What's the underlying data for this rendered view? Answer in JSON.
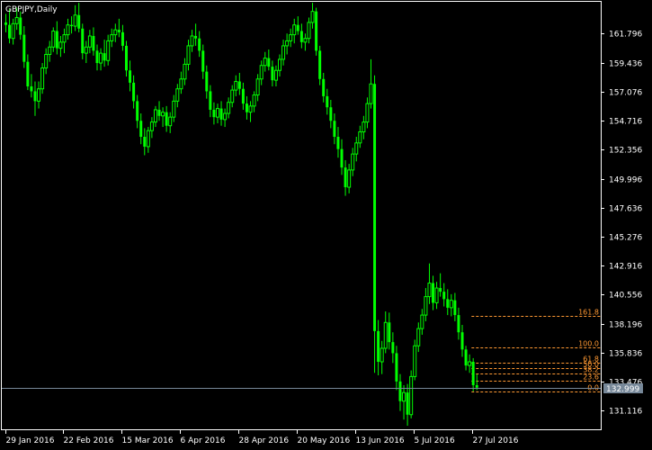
{
  "chart_data": {
    "type": "candlestick",
    "title": "GBPJPY,Daily",
    "colors": {
      "background": "#000000",
      "frame": "#ffffff",
      "candle": "#00ff00",
      "fibonacci": "#ff9933",
      "bid_line": "#778899",
      "bid_label_bg": "#778899",
      "bid_label_text": "#ffffff"
    },
    "ylim": [
      129.61,
      164.38
    ],
    "y_ticks": [
      {
        "label": "161.796",
        "value": 161.796
      },
      {
        "label": "159.436",
        "value": 159.436
      },
      {
        "label": "157.076",
        "value": 157.076
      },
      {
        "label": "154.716",
        "value": 154.716
      },
      {
        "label": "152.356",
        "value": 152.356
      },
      {
        "label": "149.996",
        "value": 149.996
      },
      {
        "label": "147.636",
        "value": 147.636
      },
      {
        "label": "145.276",
        "value": 145.276
      },
      {
        "label": "142.916",
        "value": 142.916
      },
      {
        "label": "140.556",
        "value": 140.556
      },
      {
        "label": "138.196",
        "value": 138.196
      },
      {
        "label": "135.836",
        "value": 135.836
      },
      {
        "label": "133.476",
        "value": 133.476
      },
      {
        "label": "131.116",
        "value": 131.116
      }
    ],
    "x_ticks": [
      {
        "label": "29 Jan 2016",
        "bar": 0
      },
      {
        "label": "22 Feb 2016",
        "bar": 16
      },
      {
        "label": "15 Mar 2016",
        "bar": 32
      },
      {
        "label": "6 Apr 2016",
        "bar": 48
      },
      {
        "label": "28 Apr 2016",
        "bar": 64
      },
      {
        "label": "20 May 2016",
        "bar": 80
      },
      {
        "label": "13 Jun 2016",
        "bar": 96
      },
      {
        "label": "5 Jul 2016",
        "bar": 112
      },
      {
        "label": "27 Jul 2016",
        "bar": 128
      }
    ],
    "bid": {
      "label": "132.999",
      "value": 132.999
    },
    "fibonacci": {
      "start_bar": 130,
      "levels": [
        {
          "label": "161.8",
          "value": 138.85
        },
        {
          "label": "100.0",
          "value": 136.25
        },
        {
          "label": "61.8",
          "value": 135.05
        },
        {
          "label": "50.0",
          "value": 134.58
        },
        {
          "label": "38.2",
          "value": 134.12
        },
        {
          "label": "23.6",
          "value": 133.57
        },
        {
          "label": "0.0",
          "value": 132.72
        }
      ]
    },
    "ohlc": [
      [
        162.7,
        163.4,
        161.9,
        162.5
      ],
      [
        162.5,
        163.8,
        161.0,
        161.4
      ],
      [
        161.4,
        163.0,
        160.9,
        162.6
      ],
      [
        162.6,
        163.9,
        162.1,
        163.1
      ],
      [
        163.1,
        163.6,
        161.3,
        161.7
      ],
      [
        161.7,
        162.4,
        159.0,
        159.5
      ],
      [
        159.5,
        160.1,
        157.2,
        157.5
      ],
      [
        157.5,
        158.5,
        156.6,
        157.1
      ],
      [
        157.1,
        157.9,
        155.1,
        156.3
      ],
      [
        156.3,
        157.9,
        155.7,
        157.3
      ],
      [
        157.3,
        159.4,
        156.9,
        159.0
      ],
      [
        159.0,
        160.6,
        158.5,
        160.1
      ],
      [
        160.1,
        161.2,
        159.5,
        160.7
      ],
      [
        160.7,
        162.3,
        160.3,
        162.0
      ],
      [
        162.0,
        162.8,
        160.1,
        160.6
      ],
      [
        160.6,
        161.6,
        159.9,
        161.1
      ],
      [
        161.1,
        162.2,
        160.2,
        161.7
      ],
      [
        161.7,
        163.0,
        161.3,
        162.5
      ],
      [
        162.5,
        163.2,
        161.8,
        162.4
      ],
      [
        162.4,
        164.1,
        162.0,
        163.3
      ],
      [
        163.3,
        164.3,
        161.9,
        162.2
      ],
      [
        162.2,
        162.6,
        159.7,
        160.2
      ],
      [
        160.2,
        161.2,
        159.4,
        160.7
      ],
      [
        160.7,
        162.1,
        160.2,
        161.6
      ],
      [
        161.6,
        162.3,
        160.0,
        160.4
      ],
      [
        160.4,
        160.9,
        158.8,
        159.4
      ],
      [
        159.4,
        160.6,
        158.8,
        160.2
      ],
      [
        160.2,
        161.3,
        159.1,
        159.6
      ],
      [
        159.6,
        161.7,
        159.2,
        161.2
      ],
      [
        161.2,
        162.2,
        160.7,
        161.7
      ],
      [
        161.7,
        162.6,
        161.1,
        162.1
      ],
      [
        162.1,
        163.0,
        161.5,
        161.9
      ],
      [
        161.9,
        162.5,
        160.4,
        160.8
      ],
      [
        160.8,
        161.2,
        158.3,
        158.8
      ],
      [
        158.8,
        159.6,
        157.1,
        157.8
      ],
      [
        157.8,
        158.4,
        155.7,
        156.3
      ],
      [
        156.3,
        156.8,
        154.1,
        154.7
      ],
      [
        154.7,
        155.3,
        152.8,
        153.4
      ],
      [
        153.4,
        154.1,
        151.9,
        152.6
      ],
      [
        152.6,
        154.2,
        152.1,
        153.9
      ],
      [
        153.9,
        155.0,
        153.3,
        154.6
      ],
      [
        154.6,
        155.9,
        154.2,
        155.6
      ],
      [
        155.6,
        156.3,
        154.7,
        155.1
      ],
      [
        155.1,
        155.8,
        154.2,
        155.4
      ],
      [
        155.4,
        155.9,
        153.8,
        154.3
      ],
      [
        154.3,
        155.4,
        153.7,
        155.0
      ],
      [
        155.0,
        156.8,
        154.6,
        156.3
      ],
      [
        156.3,
        157.7,
        155.8,
        157.3
      ],
      [
        157.3,
        158.7,
        156.9,
        158.1
      ],
      [
        158.1,
        159.8,
        157.6,
        159.3
      ],
      [
        159.3,
        161.3,
        158.8,
        160.8
      ],
      [
        160.8,
        162.1,
        160.3,
        161.6
      ],
      [
        161.6,
        162.6,
        160.8,
        161.4
      ],
      [
        161.4,
        162.0,
        159.9,
        160.4
      ],
      [
        160.4,
        160.9,
        158.1,
        158.7
      ],
      [
        158.7,
        159.2,
        156.5,
        157.1
      ],
      [
        157.1,
        157.6,
        155.0,
        155.6
      ],
      [
        155.6,
        156.2,
        154.4,
        155.0
      ],
      [
        155.0,
        156.1,
        154.5,
        155.7
      ],
      [
        155.7,
        156.3,
        154.3,
        154.8
      ],
      [
        154.8,
        155.7,
        154.2,
        155.3
      ],
      [
        155.3,
        156.6,
        154.9,
        156.2
      ],
      [
        156.2,
        157.6,
        155.8,
        157.2
      ],
      [
        157.2,
        158.4,
        156.7,
        157.9
      ],
      [
        157.9,
        158.6,
        156.8,
        157.3
      ],
      [
        157.3,
        157.8,
        155.6,
        156.1
      ],
      [
        156.1,
        156.7,
        154.8,
        155.4
      ],
      [
        155.4,
        156.3,
        154.6,
        155.9
      ],
      [
        155.9,
        157.1,
        155.4,
        156.8
      ],
      [
        156.8,
        158.5,
        156.3,
        158.1
      ],
      [
        158.1,
        159.6,
        157.6,
        159.2
      ],
      [
        159.2,
        160.3,
        158.7,
        159.8
      ],
      [
        159.8,
        160.5,
        158.8,
        159.1
      ],
      [
        159.1,
        159.6,
        157.5,
        158.0
      ],
      [
        158.0,
        159.2,
        157.5,
        158.8
      ],
      [
        158.8,
        160.1,
        158.3,
        159.7
      ],
      [
        159.7,
        161.3,
        159.2,
        160.8
      ],
      [
        160.8,
        161.8,
        160.1,
        161.2
      ],
      [
        161.2,
        162.2,
        160.7,
        161.7
      ],
      [
        161.7,
        163.0,
        161.0,
        162.5
      ],
      [
        162.5,
        163.2,
        161.7,
        162.0
      ],
      [
        162.0,
        162.6,
        160.6,
        161.1
      ],
      [
        161.1,
        161.8,
        160.4,
        161.4
      ],
      [
        161.4,
        163.1,
        161.0,
        162.7
      ],
      [
        162.7,
        164.3,
        162.2,
        163.6
      ],
      [
        163.6,
        163.9,
        160.0,
        160.4
      ],
      [
        160.4,
        160.8,
        157.6,
        158.1
      ],
      [
        158.1,
        158.6,
        156.2,
        156.7
      ],
      [
        156.7,
        157.3,
        155.2,
        155.8
      ],
      [
        155.8,
        156.4,
        154.1,
        154.7
      ],
      [
        154.7,
        155.3,
        152.8,
        153.4
      ],
      [
        153.4,
        154.2,
        151.7,
        152.4
      ],
      [
        152.4,
        153.2,
        150.3,
        150.9
      ],
      [
        150.9,
        151.5,
        148.6,
        149.3
      ],
      [
        149.3,
        151.2,
        148.8,
        150.7
      ],
      [
        150.7,
        152.5,
        150.2,
        152.0
      ],
      [
        152.0,
        153.4,
        151.4,
        152.9
      ],
      [
        152.9,
        154.3,
        152.5,
        153.8
      ],
      [
        153.8,
        155.1,
        153.2,
        154.6
      ],
      [
        154.6,
        156.6,
        154.1,
        156.1
      ],
      [
        156.1,
        159.7,
        155.7,
        157.7
      ],
      [
        157.7,
        158.4,
        134.2,
        137.6
      ],
      [
        137.6,
        138.5,
        134.0,
        135.1
      ],
      [
        135.1,
        136.8,
        134.1,
        136.2
      ],
      [
        136.2,
        139.2,
        135.8,
        138.3
      ],
      [
        138.3,
        139.1,
        136.1,
        136.7
      ],
      [
        136.7,
        137.5,
        135.0,
        135.8
      ],
      [
        135.8,
        136.4,
        132.8,
        133.5
      ],
      [
        133.5,
        134.1,
        131.1,
        131.9
      ],
      [
        131.9,
        133.2,
        130.4,
        132.6
      ],
      [
        132.6,
        133.3,
        129.9,
        130.8
      ],
      [
        130.8,
        134.4,
        130.5,
        133.9
      ],
      [
        133.9,
        136.9,
        133.6,
        136.4
      ],
      [
        136.4,
        138.3,
        135.9,
        137.8
      ],
      [
        137.8,
        139.4,
        137.3,
        138.9
      ],
      [
        138.9,
        141.1,
        138.4,
        140.4
      ],
      [
        140.4,
        143.1,
        139.8,
        141.5
      ],
      [
        141.5,
        142.1,
        139.3,
        139.9
      ],
      [
        139.9,
        141.6,
        139.4,
        141.1
      ],
      [
        141.1,
        142.3,
        140.4,
        140.8
      ],
      [
        140.8,
        141.5,
        139.6,
        140.2
      ],
      [
        140.2,
        141.0,
        138.9,
        139.5
      ],
      [
        139.5,
        140.6,
        138.8,
        140.1
      ],
      [
        140.1,
        140.7,
        138.4,
        138.9
      ],
      [
        138.9,
        139.5,
        136.9,
        137.5
      ],
      [
        137.5,
        138.1,
        135.5,
        136.1
      ],
      [
        136.1,
        136.4,
        134.4,
        134.8
      ],
      [
        134.8,
        135.7,
        134.2,
        135.1
      ],
      [
        135.1,
        135.4,
        132.7,
        133.2
      ],
      [
        133.2,
        134.1,
        132.8,
        133.0
      ]
    ]
  }
}
